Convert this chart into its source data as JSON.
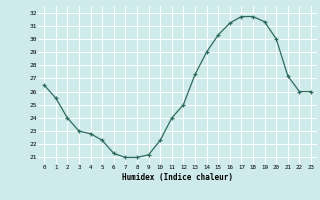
{
  "x": [
    0,
    1,
    2,
    3,
    4,
    5,
    6,
    7,
    8,
    9,
    10,
    11,
    12,
    13,
    14,
    15,
    16,
    17,
    18,
    19,
    20,
    21,
    22,
    23
  ],
  "y": [
    26.5,
    25.5,
    24.0,
    23.0,
    22.8,
    22.3,
    21.3,
    21.0,
    21.0,
    21.2,
    22.3,
    24.0,
    25.0,
    27.3,
    29.0,
    30.3,
    31.2,
    31.7,
    31.7,
    31.3,
    30.0,
    27.2,
    26.0,
    26.0
  ],
  "xlabel": "Humidex (Indice chaleur)",
  "xlim": [
    -0.5,
    23.5
  ],
  "ylim": [
    20.5,
    32.5
  ],
  "yticks": [
    21,
    22,
    23,
    24,
    25,
    26,
    27,
    28,
    29,
    30,
    31,
    32
  ],
  "xticks": [
    0,
    1,
    2,
    3,
    4,
    5,
    6,
    7,
    8,
    9,
    10,
    11,
    12,
    13,
    14,
    15,
    16,
    17,
    18,
    19,
    20,
    21,
    22,
    23
  ],
  "line_color": "#2e6b5e",
  "marker": "+",
  "bg_color": "#ceeaea",
  "grid_color": "#ffffff"
}
